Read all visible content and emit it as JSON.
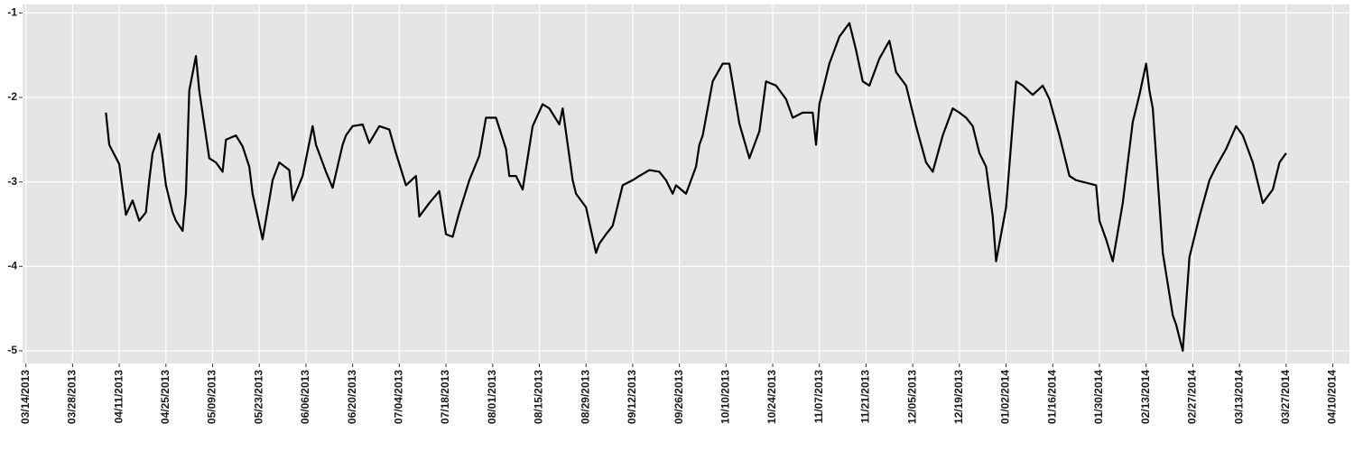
{
  "chart_data": {
    "type": "line",
    "color": "#000000",
    "grid": true,
    "x": [
      "2013-04-07",
      "2013-04-08",
      "2013-04-11",
      "2013-04-12",
      "2013-04-13",
      "2013-04-15",
      "2013-04-17",
      "2013-04-19",
      "2013-04-20",
      "2013-04-21",
      "2013-04-23",
      "2013-04-24",
      "2013-04-25",
      "2013-04-27",
      "2013-04-28",
      "2013-04-30",
      "2013-05-01",
      "2013-05-02",
      "2013-05-04",
      "2013-05-05",
      "2013-05-08",
      "2013-05-10",
      "2013-05-12",
      "2013-05-13",
      "2013-05-16",
      "2013-05-18",
      "2013-05-20",
      "2013-05-21",
      "2013-05-24",
      "2013-05-27",
      "2013-05-29",
      "2013-06-01",
      "2013-06-02",
      "2013-06-05",
      "2013-06-08",
      "2013-06-09",
      "2013-06-12",
      "2013-06-14",
      "2013-06-17",
      "2013-06-18",
      "2013-06-20",
      "2013-06-23",
      "2013-06-25",
      "2013-06-28",
      "2013-07-01",
      "2013-07-03",
      "2013-07-06",
      "2013-07-09",
      "2013-07-10",
      "2013-07-13",
      "2013-07-16",
      "2013-07-18",
      "2013-07-20",
      "2013-07-22",
      "2013-07-25",
      "2013-07-28",
      "2013-07-30",
      "2013-08-02",
      "2013-08-05",
      "2013-08-06",
      "2013-08-08",
      "2013-08-10",
      "2013-08-13",
      "2013-08-16",
      "2013-08-18",
      "2013-08-21",
      "2013-08-22",
      "2013-08-25",
      "2013-08-26",
      "2013-08-29",
      "2013-09-01",
      "2013-09-02",
      "2013-09-04",
      "2013-09-06",
      "2013-09-09",
      "2013-09-12",
      "2013-09-14",
      "2013-09-17",
      "2013-09-20",
      "2013-09-22",
      "2013-09-24",
      "2013-09-25",
      "2013-09-28",
      "2013-10-01",
      "2013-10-02",
      "2013-10-03",
      "2013-10-06",
      "2013-10-09",
      "2013-10-11",
      "2013-10-14",
      "2013-10-17",
      "2013-10-20",
      "2013-10-22",
      "2013-10-25",
      "2013-10-28",
      "2013-10-30",
      "2013-11-02",
      "2013-11-05",
      "2013-11-06",
      "2013-11-07",
      "2013-11-10",
      "2013-11-13",
      "2013-11-16",
      "2013-11-18",
      "2013-11-20",
      "2013-11-22",
      "2013-11-25",
      "2013-11-28",
      "2013-11-30",
      "2013-12-03",
      "2013-12-06",
      "2013-12-09",
      "2013-12-11",
      "2013-12-14",
      "2013-12-17",
      "2013-12-19",
      "2013-12-21",
      "2013-12-23",
      "2013-12-25",
      "2013-12-27",
      "2013-12-29",
      "2013-12-30",
      "2014-01-02",
      "2014-01-05",
      "2014-01-07",
      "2014-01-10",
      "2014-01-13",
      "2014-01-15",
      "2014-01-18",
      "2014-01-21",
      "2014-01-23",
      "2014-01-26",
      "2014-01-29",
      "2014-01-30",
      "2014-02-01",
      "2014-02-03",
      "2014-02-06",
      "2014-02-09",
      "2014-02-11",
      "2014-02-13",
      "2014-02-14",
      "2014-02-15",
      "2014-02-18",
      "2014-02-21",
      "2014-02-22",
      "2014-02-24",
      "2014-02-26",
      "2014-03-01",
      "2014-03-04",
      "2014-03-06",
      "2014-03-09",
      "2014-03-12",
      "2014-03-14",
      "2014-03-17",
      "2014-03-20",
      "2014-03-23",
      "2014-03-25",
      "2014-03-27"
    ],
    "values": [
      -2.18,
      -2.56,
      -2.79,
      -3.09,
      -3.39,
      -3.22,
      -3.46,
      -3.36,
      -2.98,
      -2.66,
      -2.43,
      -2.72,
      -3.04,
      -3.36,
      -3.46,
      -3.58,
      -3.14,
      -1.92,
      -1.51,
      -1.92,
      -2.72,
      -2.77,
      -2.88,
      -2.5,
      -2.45,
      -2.58,
      -2.82,
      -3.14,
      -3.68,
      -2.98,
      -2.77,
      -2.86,
      -3.22,
      -2.93,
      -2.34,
      -2.56,
      -2.88,
      -3.07,
      -2.56,
      -2.45,
      -2.34,
      -2.32,
      -2.54,
      -2.34,
      -2.38,
      -2.66,
      -3.04,
      -2.93,
      -3.41,
      -3.25,
      -3.11,
      -3.62,
      -3.65,
      -3.36,
      -2.98,
      -2.69,
      -2.24,
      -2.24,
      -2.61,
      -2.93,
      -2.93,
      -3.09,
      -2.34,
      -2.08,
      -2.13,
      -2.32,
      -2.13,
      -2.98,
      -3.14,
      -3.3,
      -3.84,
      -3.73,
      -3.62,
      -3.52,
      -3.04,
      -2.98,
      -2.93,
      -2.86,
      -2.88,
      -2.98,
      -3.14,
      -3.04,
      -3.14,
      -2.82,
      -2.56,
      -2.45,
      -1.81,
      -1.6,
      -1.6,
      -2.31,
      -2.72,
      -2.4,
      -1.81,
      -1.86,
      -2.02,
      -2.24,
      -2.18,
      -2.18,
      -2.56,
      -2.08,
      -1.6,
      -1.28,
      -1.12,
      -1.44,
      -1.81,
      -1.86,
      -1.54,
      -1.33,
      -1.7,
      -1.86,
      -2.34,
      -2.77,
      -2.88,
      -2.45,
      -2.13,
      -2.18,
      -2.24,
      -2.34,
      -2.66,
      -2.82,
      -3.41,
      -3.94,
      -3.3,
      -1.81,
      -1.86,
      -1.97,
      -1.86,
      -2.02,
      -2.45,
      -2.93,
      -2.98,
      -3.01,
      -3.04,
      -3.46,
      -3.68,
      -3.94,
      -3.25,
      -2.29,
      -1.97,
      -1.6,
      -1.92,
      -2.13,
      -3.84,
      -4.58,
      -4.69,
      -5.0,
      -3.89,
      -3.41,
      -2.98,
      -2.82,
      -2.61,
      -2.34,
      -2.45,
      -2.77,
      -3.25,
      -3.09,
      -2.77,
      -2.66
    ],
    "xlim": [
      "2013-03-13",
      "2014-04-15"
    ],
    "xticks": [
      {
        "value": "2013-03-14",
        "label": "03/14/2013"
      },
      {
        "value": "2013-03-28",
        "label": "03/28/2013"
      },
      {
        "value": "2013-04-11",
        "label": "04/11/2013"
      },
      {
        "value": "2013-04-25",
        "label": "04/25/2013"
      },
      {
        "value": "2013-05-09",
        "label": "05/09/2013"
      },
      {
        "value": "2013-05-23",
        "label": "05/23/2013"
      },
      {
        "value": "2013-06-06",
        "label": "06/06/2013"
      },
      {
        "value": "2013-06-20",
        "label": "06/20/2013"
      },
      {
        "value": "2013-07-04",
        "label": "07/04/2013"
      },
      {
        "value": "2013-07-18",
        "label": "07/18/2013"
      },
      {
        "value": "2013-08-01",
        "label": "08/01/2013"
      },
      {
        "value": "2013-08-15",
        "label": "08/15/2013"
      },
      {
        "value": "2013-08-29",
        "label": "08/29/2013"
      },
      {
        "value": "2013-09-12",
        "label": "09/12/2013"
      },
      {
        "value": "2013-09-26",
        "label": "09/26/2013"
      },
      {
        "value": "2013-10-10",
        "label": "10/10/2013"
      },
      {
        "value": "2013-10-24",
        "label": "10/24/2013"
      },
      {
        "value": "2013-11-07",
        "label": "11/07/2013"
      },
      {
        "value": "2013-11-21",
        "label": "11/21/2013"
      },
      {
        "value": "2013-12-05",
        "label": "12/05/2013"
      },
      {
        "value": "2013-12-19",
        "label": "12/19/2013"
      },
      {
        "value": "2014-01-02",
        "label": "01/02/2014"
      },
      {
        "value": "2014-01-16",
        "label": "01/16/2014"
      },
      {
        "value": "2014-01-30",
        "label": "01/30/2014"
      },
      {
        "value": "2014-02-13",
        "label": "02/13/2014"
      },
      {
        "value": "2014-02-27",
        "label": "02/27/2014"
      },
      {
        "value": "2014-03-13",
        "label": "03/13/2014"
      },
      {
        "value": "2014-03-27",
        "label": "03/27/2014"
      },
      {
        "value": "2014-04-10",
        "label": "04/10/2014"
      }
    ],
    "ylim": [
      -5.15,
      -0.9
    ],
    "yticks": [
      -1,
      -2,
      -3,
      -4,
      -5
    ]
  }
}
